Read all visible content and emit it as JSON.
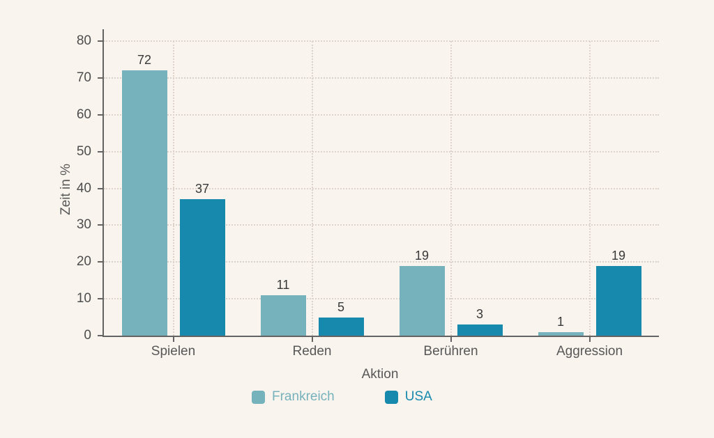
{
  "chart_data": {
    "type": "bar",
    "title": "",
    "categories": [
      "Spielen",
      "Reden",
      "Berühren",
      "Aggression"
    ],
    "series": [
      {
        "name": "Frankreich",
        "color": "#76b2bc",
        "values": [
          72,
          11,
          19,
          1
        ]
      },
      {
        "name": "USA",
        "color": "#1789ad",
        "values": [
          37,
          5,
          3,
          19
        ]
      }
    ],
    "xlabel": "Aktion",
    "ylabel": "Zeit in %",
    "ylim": [
      0,
      80
    ],
    "yticks": [
      0,
      10,
      20,
      30,
      40,
      50,
      60,
      70,
      80
    ],
    "grid": "dotted horizontal gridlines at each y tick and vertical gridline at each category center",
    "legend_position": "bottom",
    "value_labels": true
  },
  "colors": {
    "background": "#faf4ee",
    "axis": "#636363",
    "grid": "#ddd3cb",
    "tick_label": "#4d4d4d",
    "category_label": "#575757",
    "value_label": "#383838"
  }
}
